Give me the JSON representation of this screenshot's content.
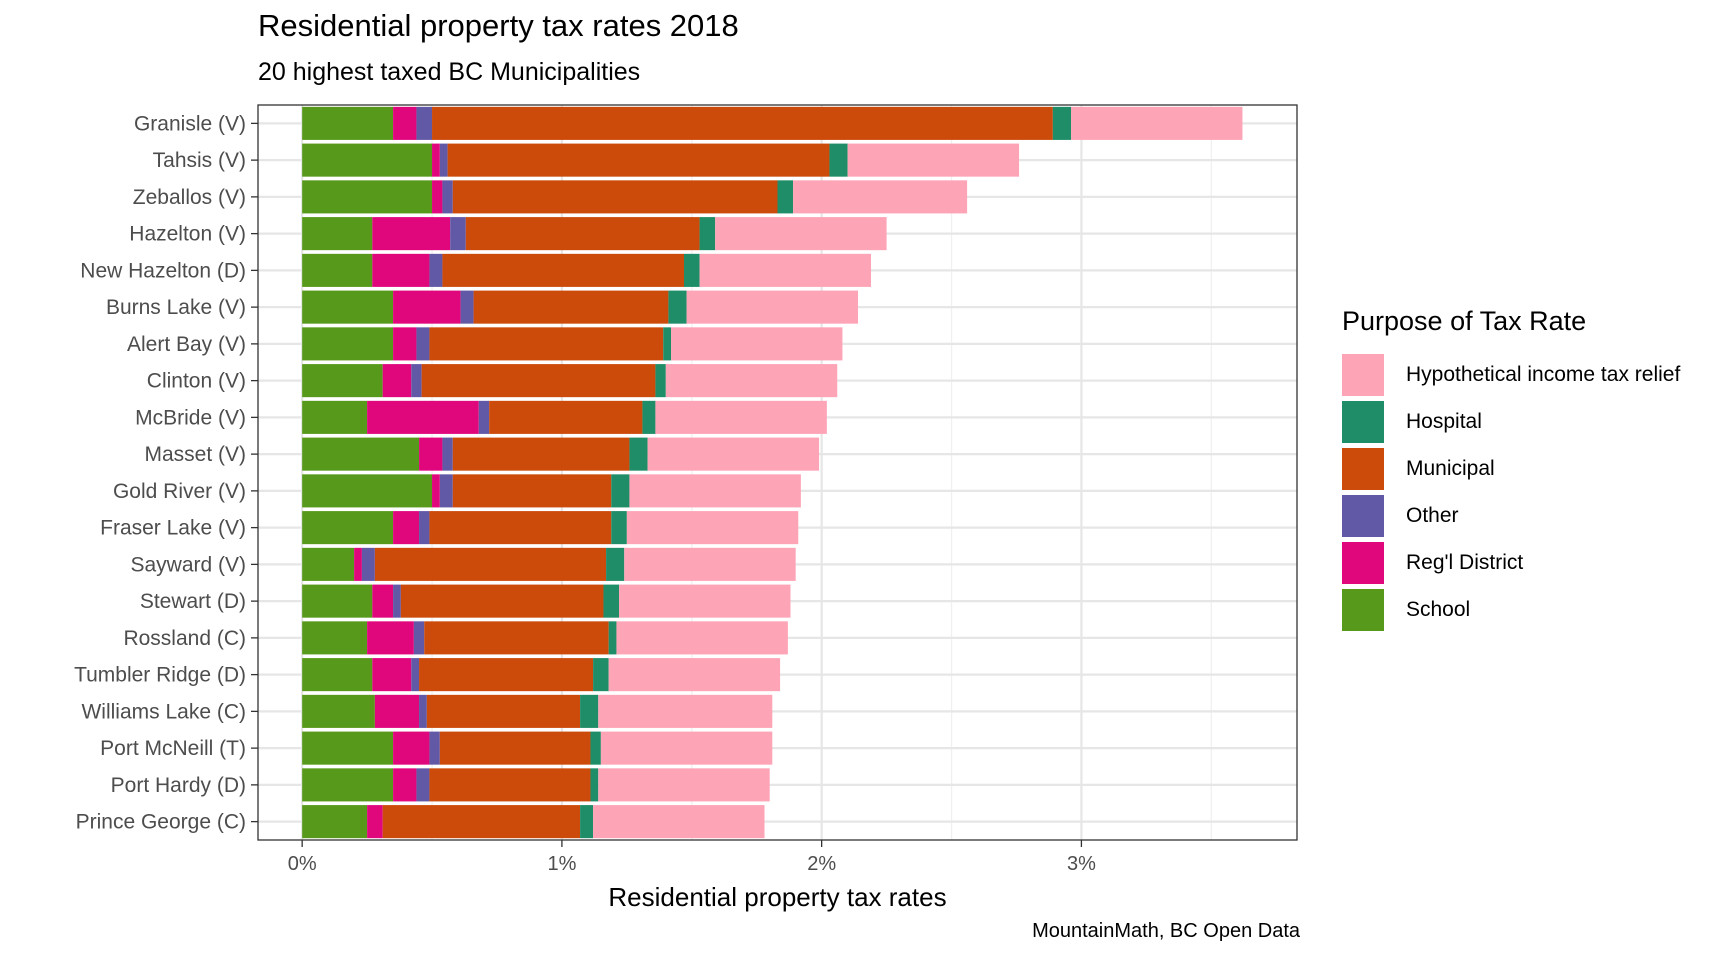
{
  "chart_data": {
    "type": "bar",
    "orientation": "horizontal",
    "stacked": true,
    "title": "Residential property tax rates 2018",
    "subtitle": "20 highest taxed BC Municipalities",
    "xlabel": "Residential property tax rates",
    "ylabel": "",
    "caption": "MountainMath, BC Open Data",
    "xlim": [
      -0.17,
      3.83
    ],
    "x_ticks": [
      0,
      1,
      2,
      3
    ],
    "x_tick_labels": [
      "0%",
      "1%",
      "2%",
      "3%"
    ],
    "grid": true,
    "legend_title": "Purpose of Tax Rate",
    "legend_position": "right",
    "categories": [
      "Granisle (V)",
      "Tahsis (V)",
      "Zeballos (V)",
      "Hazelton (V)",
      "New Hazelton (D)",
      "Burns Lake (V)",
      "Alert Bay (V)",
      "Clinton (V)",
      "McBride (V)",
      "Masset (V)",
      "Gold River (V)",
      "Fraser Lake (V)",
      "Sayward (V)",
      "Stewart (D)",
      "Rossland (C)",
      "Tumbler Ridge (D)",
      "Williams Lake (C)",
      "Port McNeill (T)",
      "Port Hardy (D)",
      "Prince George (C)"
    ],
    "series": [
      {
        "name": "School",
        "color": "#57991b",
        "values": [
          0.35,
          0.5,
          0.5,
          0.27,
          0.27,
          0.35,
          0.35,
          0.31,
          0.25,
          0.45,
          0.5,
          0.35,
          0.2,
          0.27,
          0.25,
          0.27,
          0.28,
          0.35,
          0.35,
          0.25
        ]
      },
      {
        "name": "Reg'l District",
        "color": "#e0077d",
        "values": [
          0.09,
          0.03,
          0.04,
          0.3,
          0.22,
          0.26,
          0.09,
          0.11,
          0.43,
          0.09,
          0.03,
          0.1,
          0.03,
          0.08,
          0.18,
          0.15,
          0.17,
          0.14,
          0.09,
          0.06
        ]
      },
      {
        "name": "Other",
        "color": "#6259a6",
        "values": [
          0.06,
          0.03,
          0.04,
          0.06,
          0.05,
          0.05,
          0.05,
          0.04,
          0.04,
          0.04,
          0.05,
          0.04,
          0.05,
          0.03,
          0.04,
          0.03,
          0.03,
          0.04,
          0.05,
          0.0
        ]
      },
      {
        "name": "Municipal",
        "color": "#cc4a0a",
        "values": [
          2.39,
          1.47,
          1.25,
          0.9,
          0.93,
          0.75,
          0.9,
          0.9,
          0.59,
          0.68,
          0.61,
          0.7,
          0.89,
          0.78,
          0.71,
          0.67,
          0.59,
          0.58,
          0.62,
          0.76
        ]
      },
      {
        "name": "Hospital",
        "color": "#1f8d68",
        "values": [
          0.07,
          0.07,
          0.06,
          0.06,
          0.06,
          0.07,
          0.03,
          0.04,
          0.05,
          0.07,
          0.07,
          0.06,
          0.07,
          0.06,
          0.03,
          0.06,
          0.07,
          0.04,
          0.03,
          0.05
        ]
      },
      {
        "name": "Hypothetical income tax relief",
        "color": "#fea4b7",
        "values": [
          0.66,
          0.66,
          0.67,
          0.66,
          0.66,
          0.66,
          0.66,
          0.66,
          0.66,
          0.66,
          0.66,
          0.66,
          0.66,
          0.66,
          0.66,
          0.66,
          0.67,
          0.66,
          0.66,
          0.66
        ]
      }
    ],
    "legend_order": [
      "Hypothetical income tax relief",
      "Hospital",
      "Municipal",
      "Other",
      "Reg'l District",
      "School"
    ]
  }
}
